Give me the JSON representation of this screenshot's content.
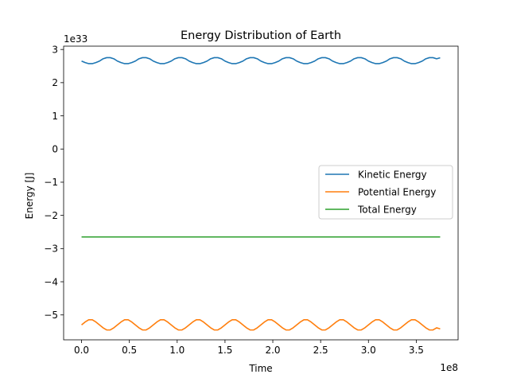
{
  "chart_data": {
    "type": "line",
    "title": "Energy Distribution of Earth",
    "xlabel": "Time",
    "ylabel": "Energy [J]",
    "x_offset_label": "1e8",
    "y_offset_label": "1e33",
    "xlim": [
      -0.1875,
      3.9375
    ],
    "ylim": [
      -5.75,
      3.1
    ],
    "x_ticks": [
      0.0,
      0.5,
      1.0,
      1.5,
      2.0,
      2.5,
      3.0,
      3.5
    ],
    "x_tick_labels": [
      "0.0",
      "0.5",
      "1.0",
      "1.5",
      "2.0",
      "2.5",
      "3.0",
      "3.5"
    ],
    "y_ticks": [
      -5,
      -4,
      -3,
      -2,
      -1,
      0,
      1,
      2,
      3
    ],
    "y_tick_labels": [
      "−5",
      "−4",
      "−3",
      "−2",
      "−1",
      "0",
      "1",
      "2",
      "3"
    ],
    "grid": false,
    "legend_position": "center-right",
    "series": [
      {
        "name": "Kinetic Energy",
        "color": "#1f77b4",
        "x": [
          0.0,
          0.0375,
          0.075,
          0.1125,
          0.15,
          0.1875,
          0.225,
          0.2625,
          0.3,
          0.3375,
          0.375,
          0.4125,
          0.45,
          0.4875,
          0.525,
          0.5625,
          0.6,
          0.6375,
          0.675,
          0.7125,
          0.75,
          0.7875,
          0.825,
          0.8625,
          0.9,
          0.9375,
          0.975,
          1.0125,
          1.05,
          1.0875,
          1.125,
          1.1625,
          1.2,
          1.2375,
          1.275,
          1.3125,
          1.35,
          1.3875,
          1.425,
          1.4625,
          1.5,
          1.5375,
          1.575,
          1.6125,
          1.65,
          1.6875,
          1.725,
          1.7625,
          1.8,
          1.8375,
          1.875,
          1.9125,
          1.95,
          1.9875,
          2.025,
          2.0625,
          2.1,
          2.1375,
          2.175,
          2.2125,
          2.25,
          2.2875,
          2.325,
          2.3625,
          2.4,
          2.4375,
          2.475,
          2.5125,
          2.55,
          2.5875,
          2.625,
          2.6625,
          2.7,
          2.7375,
          2.775,
          2.8125,
          2.85,
          2.8875,
          2.925,
          2.9625,
          3.0,
          3.0375,
          3.075,
          3.1125,
          3.15,
          3.1875,
          3.225,
          3.2625,
          3.3,
          3.3375,
          3.375,
          3.4125,
          3.45,
          3.4875,
          3.525,
          3.5625,
          3.6,
          3.6375,
          3.675,
          3.7125,
          3.75
        ],
        "y": [
          2.65,
          2.606,
          2.573,
          2.573,
          2.606,
          2.65,
          2.72,
          2.754,
          2.754,
          2.72,
          2.65,
          2.606,
          2.573,
          2.573,
          2.606,
          2.65,
          2.72,
          2.754,
          2.754,
          2.72,
          2.65,
          2.606,
          2.573,
          2.573,
          2.606,
          2.65,
          2.72,
          2.754,
          2.754,
          2.72,
          2.65,
          2.606,
          2.573,
          2.573,
          2.606,
          2.65,
          2.72,
          2.754,
          2.754,
          2.72,
          2.65,
          2.606,
          2.573,
          2.573,
          2.606,
          2.65,
          2.72,
          2.754,
          2.754,
          2.72,
          2.65,
          2.606,
          2.573,
          2.573,
          2.606,
          2.65,
          2.72,
          2.754,
          2.754,
          2.72,
          2.65,
          2.606,
          2.573,
          2.573,
          2.606,
          2.65,
          2.72,
          2.754,
          2.754,
          2.72,
          2.65,
          2.606,
          2.573,
          2.573,
          2.606,
          2.65,
          2.72,
          2.754,
          2.754,
          2.72,
          2.65,
          2.606,
          2.573,
          2.573,
          2.606,
          2.65,
          2.72,
          2.754,
          2.754,
          2.72,
          2.65,
          2.606,
          2.573,
          2.573,
          2.606,
          2.65,
          2.72,
          2.754,
          2.754,
          2.72,
          2.75
        ]
      },
      {
        "name": "Potential Energy",
        "color": "#ff7f0e",
        "x": [
          0.0,
          0.0375,
          0.075,
          0.1125,
          0.15,
          0.1875,
          0.225,
          0.2625,
          0.3,
          0.3375,
          0.375,
          0.4125,
          0.45,
          0.4875,
          0.525,
          0.5625,
          0.6,
          0.6375,
          0.675,
          0.7125,
          0.75,
          0.7875,
          0.825,
          0.8625,
          0.9,
          0.9375,
          0.975,
          1.0125,
          1.05,
          1.0875,
          1.125,
          1.1625,
          1.2,
          1.2375,
          1.275,
          1.3125,
          1.35,
          1.3875,
          1.425,
          1.4625,
          1.5,
          1.5375,
          1.575,
          1.6125,
          1.65,
          1.6875,
          1.725,
          1.7625,
          1.8,
          1.8375,
          1.875,
          1.9125,
          1.95,
          1.9875,
          2.025,
          2.0625,
          2.1,
          2.1375,
          2.175,
          2.2125,
          2.25,
          2.2875,
          2.325,
          2.3625,
          2.4,
          2.4375,
          2.475,
          2.5125,
          2.55,
          2.5875,
          2.625,
          2.6625,
          2.7,
          2.7375,
          2.775,
          2.8125,
          2.85,
          2.8875,
          2.925,
          2.9625,
          3.0,
          3.0375,
          3.075,
          3.1125,
          3.15,
          3.1875,
          3.225,
          3.2625,
          3.3,
          3.3375,
          3.375,
          3.4125,
          3.45,
          3.4875,
          3.525,
          3.5625,
          3.6,
          3.6375,
          3.675,
          3.7125,
          3.75
        ],
        "y": [
          -5.3,
          -5.212,
          -5.147,
          -5.147,
          -5.212,
          -5.3,
          -5.388,
          -5.453,
          -5.453,
          -5.388,
          -5.3,
          -5.212,
          -5.147,
          -5.147,
          -5.212,
          -5.3,
          -5.388,
          -5.453,
          -5.453,
          -5.388,
          -5.3,
          -5.212,
          -5.147,
          -5.147,
          -5.212,
          -5.3,
          -5.388,
          -5.453,
          -5.453,
          -5.388,
          -5.3,
          -5.212,
          -5.147,
          -5.147,
          -5.212,
          -5.3,
          -5.388,
          -5.453,
          -5.453,
          -5.388,
          -5.3,
          -5.212,
          -5.147,
          -5.147,
          -5.212,
          -5.3,
          -5.388,
          -5.453,
          -5.453,
          -5.388,
          -5.3,
          -5.212,
          -5.147,
          -5.147,
          -5.212,
          -5.3,
          -5.388,
          -5.453,
          -5.453,
          -5.388,
          -5.3,
          -5.212,
          -5.147,
          -5.147,
          -5.212,
          -5.3,
          -5.388,
          -5.453,
          -5.453,
          -5.388,
          -5.3,
          -5.212,
          -5.147,
          -5.147,
          -5.212,
          -5.3,
          -5.388,
          -5.453,
          -5.453,
          -5.388,
          -5.3,
          -5.212,
          -5.147,
          -5.147,
          -5.212,
          -5.3,
          -5.388,
          -5.453,
          -5.453,
          -5.388,
          -5.3,
          -5.212,
          -5.147,
          -5.147,
          -5.212,
          -5.3,
          -5.388,
          -5.453,
          -5.453,
          -5.388,
          -5.42
        ]
      },
      {
        "name": "Total Energy",
        "color": "#2ca02c",
        "x": [
          0.0,
          3.75
        ],
        "y": [
          -2.65,
          -2.65
        ]
      }
    ]
  }
}
